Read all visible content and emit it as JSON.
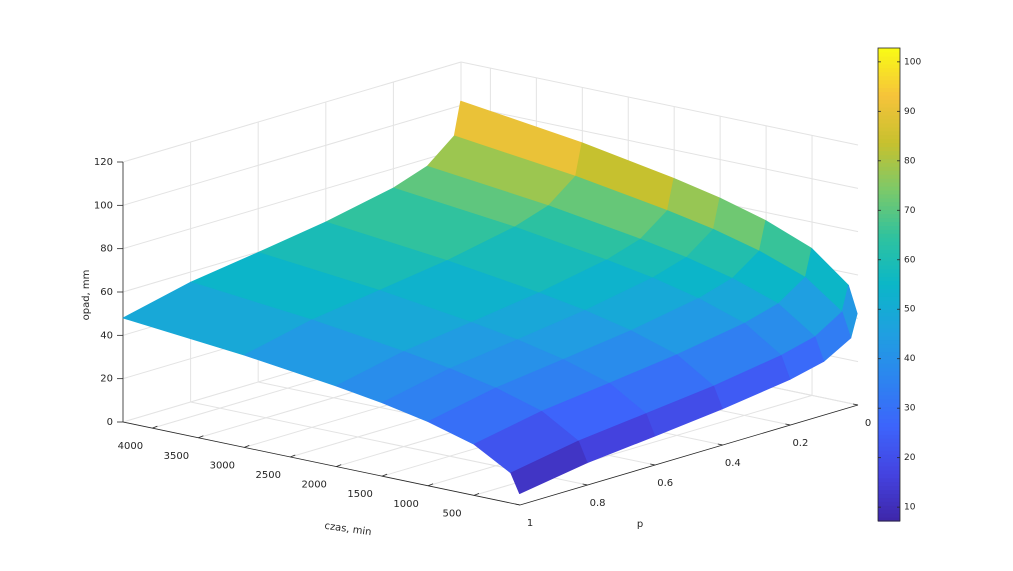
{
  "chart_data": {
    "type": "surface",
    "xlabel": "czas, min",
    "ylabel": "p",
    "zlabel": "opad, mm",
    "x": [
      5,
      100,
      500,
      1000,
      1500,
      2000,
      3000,
      4320
    ],
    "y": [
      0.001,
      0.02,
      0.1,
      0.2,
      0.4,
      0.6,
      0.8,
      1
    ],
    "z": [
      [
        42.2,
        31.8,
        24.7,
        21.0,
        16.6,
        13.3,
        10.2,
        5.2
      ],
      [
        54.4,
        43.0,
        35.2,
        31.2,
        26.3,
        22.8,
        19.4,
        13.9
      ],
      [
        67.9,
        55.4,
        46.9,
        42.5,
        37.2,
        33.3,
        29.6,
        23.6
      ],
      [
        76.3,
        63.1,
        54.2,
        49.5,
        43.9,
        39.8,
        35.9,
        29.6
      ],
      [
        82.3,
        68.7,
        59.4,
        54.6,
        48.8,
        44.5,
        40.4,
        33.9
      ],
      [
        86.9,
        72.9,
        63.4,
        58.4,
        52.5,
        48.1,
        43.9,
        37.2
      ],
      [
        94.5,
        79.9,
        70.0,
        64.8,
        58.5,
        54.0,
        49.6,
        42.6
      ],
      [
        102.0,
        86.8,
        76.5,
        71.1,
        64.6,
        59.8,
        55.3,
        48.0
      ]
    ],
    "xlim": [
      0,
      4320
    ],
    "ylim": [
      0,
      1
    ],
    "zlim": [
      0,
      120
    ],
    "xticks": [
      500,
      1000,
      1500,
      2000,
      2500,
      3000,
      3500,
      4000
    ],
    "yticks": [
      0,
      0.2,
      0.4,
      0.6,
      0.8,
      1
    ],
    "zticks": [
      0,
      20,
      40,
      60,
      80,
      100,
      120
    ],
    "grid": true,
    "colormap": [
      "#3e26a8",
      "#4443e0",
      "#3d64fb",
      "#2d84f0",
      "#1fa0e0",
      "#0bb6c8",
      "#2ec29f",
      "#7bc96a",
      "#c7c12e",
      "#f6c33b",
      "#f9fb15"
    ],
    "colorbar": {
      "clim": [
        7.2,
        102.8
      ],
      "ticks": [
        10,
        20,
        30,
        40,
        50,
        60,
        70,
        80,
        90,
        100
      ]
    }
  }
}
